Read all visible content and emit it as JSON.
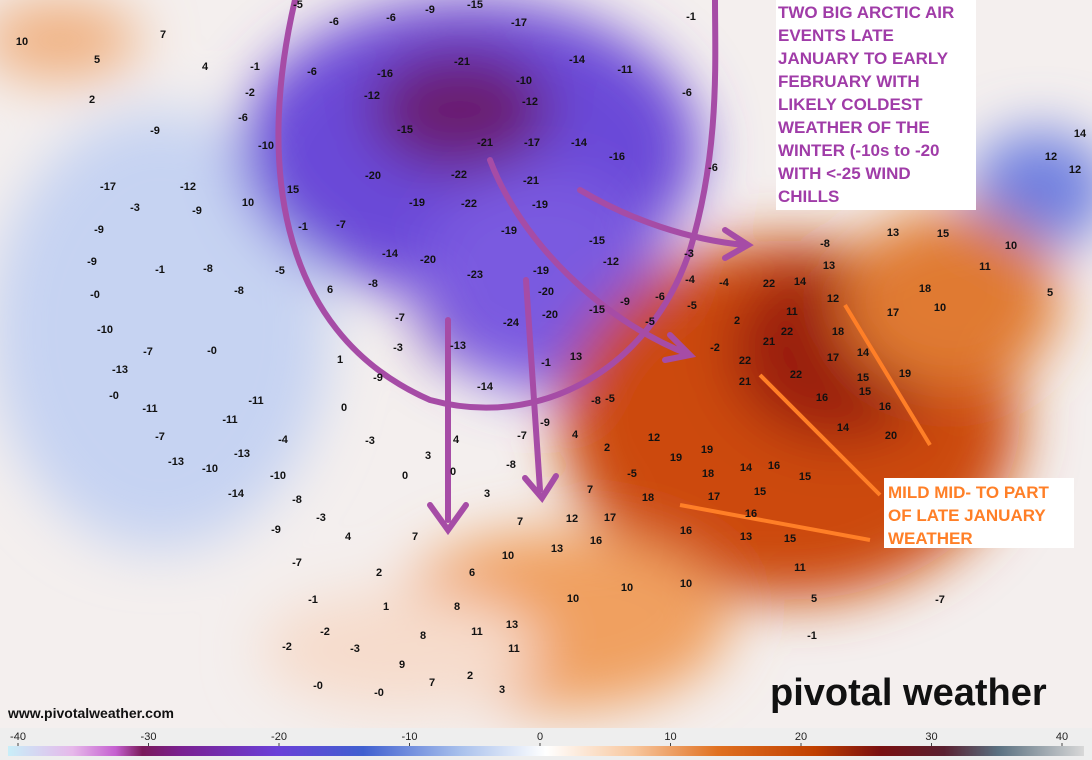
{
  "map": {
    "labels": [
      10,
      5,
      7,
      4,
      -1,
      2,
      -2,
      -6,
      -9,
      -10,
      -17,
      -12,
      -9,
      -3,
      10,
      -9,
      -9,
      -1,
      -8,
      -5,
      -8,
      "-0",
      -10,
      -7,
      "-0",
      -13,
      "-0",
      -11,
      -7,
      -11,
      -11,
      -4,
      -13,
      -13,
      -10,
      -10,
      -14,
      -8,
      -9,
      -3,
      4,
      -7,
      2,
      1,
      7,
      0,
      4,
      3,
      0,
      3,
      7,
      10,
      6,
      8,
      8,
      11,
      13,
      11,
      2,
      3,
      9,
      7,
      "-0",
      -3,
      "-0",
      -2,
      -1,
      -2,
      12,
      16,
      13,
      10,
      10,
      10,
      17,
      18,
      7,
      19,
      19,
      18,
      17,
      14,
      15,
      16,
      16,
      13,
      15,
      11,
      5,
      -1,
      16,
      15,
      12,
      2,
      -5,
      4,
      -9,
      -7,
      -8,
      -5,
      -8,
      13,
      -1,
      -14,
      -13,
      -5,
      -6,
      -6,
      -9,
      -15,
      -17,
      -14,
      -11,
      -6,
      -1,
      -6,
      -16,
      -12,
      -15,
      -21,
      -10,
      -12,
      -17,
      -21,
      -14,
      -16,
      -6,
      -20,
      -22,
      -21,
      -19,
      -22,
      -19,
      15,
      -7,
      -1,
      -14,
      -20,
      -19,
      -15,
      -12,
      -23,
      -19,
      -20,
      6,
      -8,
      -7,
      -24,
      -20,
      -15,
      -9,
      -6,
      -5,
      -4,
      -3,
      -4,
      -5,
      -2,
      2,
      1,
      -3,
      -9,
      0,
      -3,
      -8,
      13,
      13,
      14,
      12,
      22,
      11,
      22,
      21,
      22,
      21,
      22,
      18,
      17,
      14,
      17,
      16,
      15,
      16,
      20,
      14,
      15,
      19,
      18,
      10,
      15,
      11,
      10,
      5,
      12,
      14,
      12,
      -7
    ],
    "note_arctic": [
      "TWO BIG ARCTIC AIR",
      "EVENTS LATE",
      "JANUARY TO EARLY",
      "FEBRUARY WITH",
      "LIKELY COLDEST",
      "WEATHER OF THE",
      "WINTER (-10s to -20",
      "WITH <-25 WIND",
      "CHILLS"
    ],
    "note_mild": [
      "MILD MID- TO PART",
      "OF LATE JANUARY",
      "WEATHER"
    ],
    "website": "www.pivotalweather.com",
    "logo": "pivotal weather",
    "colorbar": {
      "ticks": [
        -40,
        -30,
        -20,
        -10,
        0,
        10,
        20,
        30,
        40
      ]
    }
  }
}
